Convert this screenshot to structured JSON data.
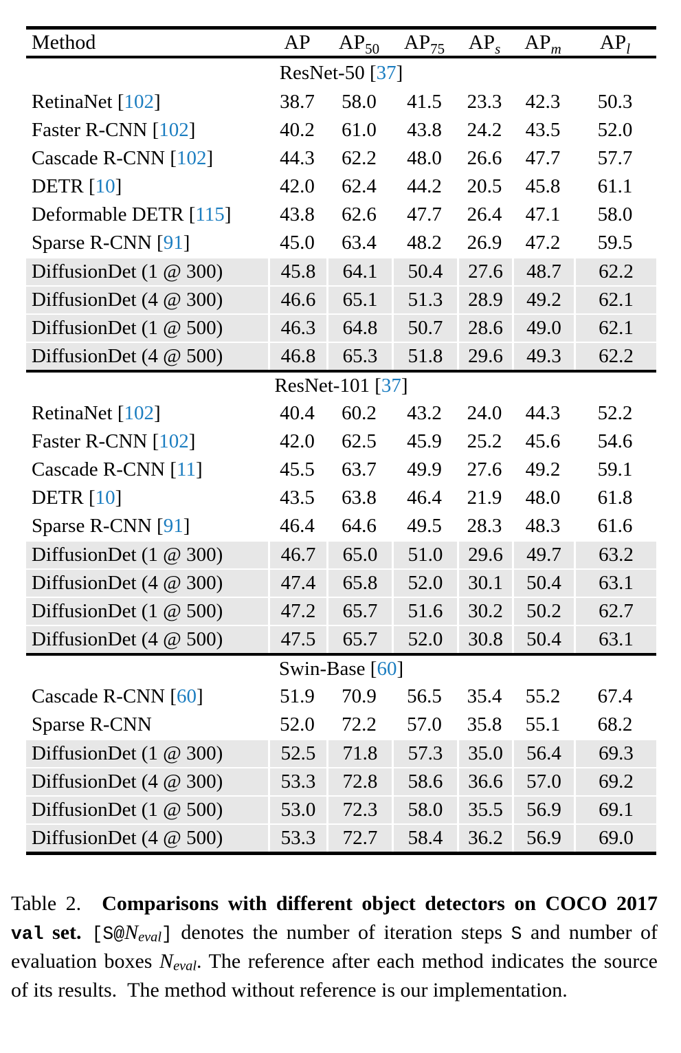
{
  "colors": {
    "citation_blue": "#1b7dc0",
    "highlight_gray": "#e7e7e7",
    "rule_black": "#000000"
  },
  "table": {
    "citation": {
      "open": "[",
      "close": "]"
    },
    "columns": [
      {
        "base": "Method",
        "sub": "",
        "sub_italic": false
      },
      {
        "base": "AP",
        "sub": "",
        "sub_italic": false
      },
      {
        "base": "AP",
        "sub": "50",
        "sub_italic": false
      },
      {
        "base": "AP",
        "sub": "75",
        "sub_italic": false
      },
      {
        "base": "AP",
        "sub": "s",
        "sub_italic": true
      },
      {
        "base": "AP",
        "sub": "m",
        "sub_italic": true
      },
      {
        "base": "AP",
        "sub": "l",
        "sub_italic": true
      }
    ],
    "sections": [
      {
        "label": "ResNet-50",
        "ref": "37",
        "rows": [
          {
            "method": "RetinaNet",
            "ref": "102",
            "highlight": false,
            "values": [
              "38.7",
              "58.0",
              "41.5",
              "23.3",
              "42.3",
              "50.3"
            ]
          },
          {
            "method": "Faster R-CNN",
            "ref": "102",
            "highlight": false,
            "values": [
              "40.2",
              "61.0",
              "43.8",
              "24.2",
              "43.5",
              "52.0"
            ]
          },
          {
            "method": "Cascade R-CNN",
            "ref": "102",
            "highlight": false,
            "values": [
              "44.3",
              "62.2",
              "48.0",
              "26.6",
              "47.7",
              "57.7"
            ]
          },
          {
            "method": "DETR",
            "ref": "10",
            "highlight": false,
            "values": [
              "42.0",
              "62.4",
              "44.2",
              "20.5",
              "45.8",
              "61.1"
            ]
          },
          {
            "method": "Deformable DETR",
            "ref": "115",
            "highlight": false,
            "values": [
              "43.8",
              "62.6",
              "47.7",
              "26.4",
              "47.1",
              "58.0"
            ]
          },
          {
            "method": "Sparse R-CNN",
            "ref": "91",
            "highlight": false,
            "values": [
              "45.0",
              "63.4",
              "48.2",
              "26.9",
              "47.2",
              "59.5"
            ]
          },
          {
            "method": "DiffusionDet (1 @ 300)",
            "ref": "",
            "highlight": true,
            "values": [
              "45.8",
              "64.1",
              "50.4",
              "27.6",
              "48.7",
              "62.2"
            ]
          },
          {
            "method": "DiffusionDet (4 @ 300)",
            "ref": "",
            "highlight": true,
            "values": [
              "46.6",
              "65.1",
              "51.3",
              "28.9",
              "49.2",
              "62.1"
            ]
          },
          {
            "method": "DiffusionDet (1 @ 500)",
            "ref": "",
            "highlight": true,
            "values": [
              "46.3",
              "64.8",
              "50.7",
              "28.6",
              "49.0",
              "62.1"
            ]
          },
          {
            "method": "DiffusionDet (4 @ 500)",
            "ref": "",
            "highlight": true,
            "values": [
              "46.8",
              "65.3",
              "51.8",
              "29.6",
              "49.3",
              "62.2"
            ]
          }
        ]
      },
      {
        "label": "ResNet-101",
        "ref": "37",
        "rows": [
          {
            "method": "RetinaNet",
            "ref": "102",
            "highlight": false,
            "values": [
              "40.4",
              "60.2",
              "43.2",
              "24.0",
              "44.3",
              "52.2"
            ]
          },
          {
            "method": "Faster R-CNN",
            "ref": "102",
            "highlight": false,
            "values": [
              "42.0",
              "62.5",
              "45.9",
              "25.2",
              "45.6",
              "54.6"
            ]
          },
          {
            "method": "Cascade R-CNN",
            "ref": "11",
            "highlight": false,
            "values": [
              "45.5",
              "63.7",
              "49.9",
              "27.6",
              "49.2",
              "59.1"
            ]
          },
          {
            "method": "DETR",
            "ref": "10",
            "highlight": false,
            "values": [
              "43.5",
              "63.8",
              "46.4",
              "21.9",
              "48.0",
              "61.8"
            ]
          },
          {
            "method": "Sparse R-CNN",
            "ref": "91",
            "highlight": false,
            "values": [
              "46.4",
              "64.6",
              "49.5",
              "28.3",
              "48.3",
              "61.6"
            ]
          },
          {
            "method": "DiffusionDet (1 @ 300)",
            "ref": "",
            "highlight": true,
            "values": [
              "46.7",
              "65.0",
              "51.0",
              "29.6",
              "49.7",
              "63.2"
            ]
          },
          {
            "method": "DiffusionDet (4 @ 300)",
            "ref": "",
            "highlight": true,
            "values": [
              "47.4",
              "65.8",
              "52.0",
              "30.1",
              "50.4",
              "63.1"
            ]
          },
          {
            "method": "DiffusionDet (1 @ 500)",
            "ref": "",
            "highlight": true,
            "values": [
              "47.2",
              "65.7",
              "51.6",
              "30.2",
              "50.2",
              "62.7"
            ]
          },
          {
            "method": "DiffusionDet (4 @ 500)",
            "ref": "",
            "highlight": true,
            "values": [
              "47.5",
              "65.7",
              "52.0",
              "30.8",
              "50.4",
              "63.1"
            ]
          }
        ]
      },
      {
        "label": "Swin-Base",
        "ref": "60",
        "rows": [
          {
            "method": "Cascade R-CNN",
            "ref": "60",
            "highlight": false,
            "values": [
              "51.9",
              "70.9",
              "56.5",
              "35.4",
              "55.2",
              "67.4"
            ]
          },
          {
            "method": "Sparse R-CNN",
            "ref": "",
            "highlight": false,
            "values": [
              "52.0",
              "72.2",
              "57.0",
              "35.8",
              "55.1",
              "68.2"
            ]
          },
          {
            "method": "DiffusionDet (1 @ 300)",
            "ref": "",
            "highlight": true,
            "values": [
              "52.5",
              "71.8",
              "57.3",
              "35.0",
              "56.4",
              "69.3"
            ]
          },
          {
            "method": "DiffusionDet (4 @ 300)",
            "ref": "",
            "highlight": true,
            "values": [
              "53.3",
              "72.8",
              "58.6",
              "36.6",
              "57.0",
              "69.2"
            ]
          },
          {
            "method": "DiffusionDet (1 @ 500)",
            "ref": "",
            "highlight": true,
            "values": [
              "53.0",
              "72.3",
              "58.0",
              "35.5",
              "56.9",
              "69.1"
            ]
          },
          {
            "method": "DiffusionDet (4 @ 500)",
            "ref": "",
            "highlight": true,
            "values": [
              "53.3",
              "72.7",
              "58.4",
              "36.2",
              "56.9",
              "69.0"
            ]
          }
        ]
      }
    ]
  },
  "caption": {
    "segments": [
      {
        "text": "Table 2.  ",
        "style": "plain"
      },
      {
        "text": "Comparisons with different object detectors on COCO 2017 ",
        "style": "bold"
      },
      {
        "text": "val",
        "style": "bold-mono"
      },
      {
        "text": " set.",
        "style": "bold"
      },
      {
        "text": " ",
        "style": "plain"
      },
      {
        "text": "[S@",
        "style": "mono"
      },
      {
        "text": "N",
        "style": "math"
      },
      {
        "text": "eval",
        "style": "math-sub"
      },
      {
        "text": "]",
        "style": "mono"
      },
      {
        "text": " denotes the number of iteration steps ",
        "style": "plain"
      },
      {
        "text": "S",
        "style": "mono"
      },
      {
        "text": " and number of evaluation boxes ",
        "style": "plain"
      },
      {
        "text": "N",
        "style": "math"
      },
      {
        "text": "eval",
        "style": "math-sub"
      },
      {
        "text": ". The reference after each method indicates the source of its results. The method without reference is our implementation.",
        "style": "plain"
      }
    ]
  }
}
